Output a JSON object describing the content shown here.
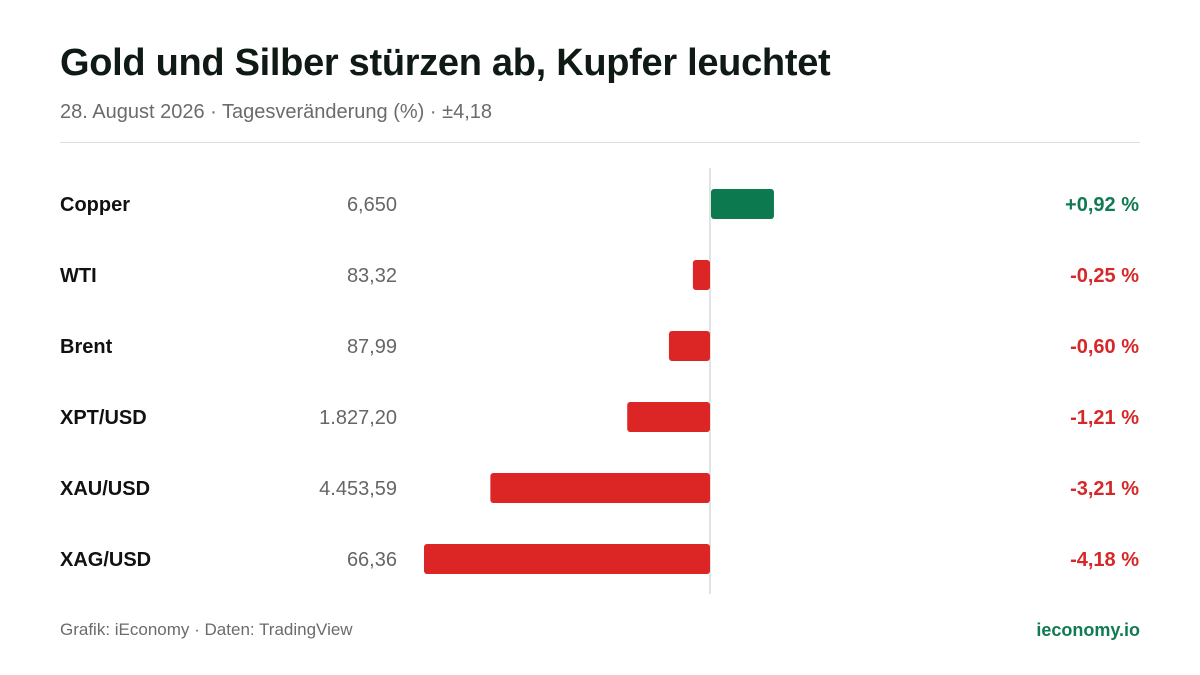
{
  "header": {
    "title": "Gold und Silber stürzen ab, Kupfer leuchtet",
    "subtitle": "28. August 2026 · Tagesveränderung (%) · ±4,18"
  },
  "footer": {
    "source": "Grafik: iEconomy · Daten: TradingView",
    "brand": "ieconomy.io"
  },
  "colors": {
    "positive": "#0c7a4e",
    "negative": "#dc2626",
    "positive_text": "#117a52",
    "negative_text": "#d62828"
  },
  "chart_data": {
    "type": "bar",
    "orientation": "horizontal",
    "xlim": [
      -4.18,
      4.18
    ],
    "rows": [
      {
        "name": "Copper",
        "price": "6,650",
        "value": 0.92,
        "change_label": "+0,92 %"
      },
      {
        "name": "WTI",
        "price": "83,32",
        "value": -0.25,
        "change_label": "-0,25 %"
      },
      {
        "name": "Brent",
        "price": "87,99",
        "value": -0.6,
        "change_label": "-0,60 %"
      },
      {
        "name": "XPT/USD",
        "price": "1.827,20",
        "value": -1.21,
        "change_label": "-1,21 %"
      },
      {
        "name": "XAU/USD",
        "price": "4.453,59",
        "value": -3.21,
        "change_label": "-3,21 %"
      },
      {
        "name": "XAG/USD",
        "price": "66,36",
        "value": -4.18,
        "change_label": "-4,18 %"
      }
    ]
  }
}
